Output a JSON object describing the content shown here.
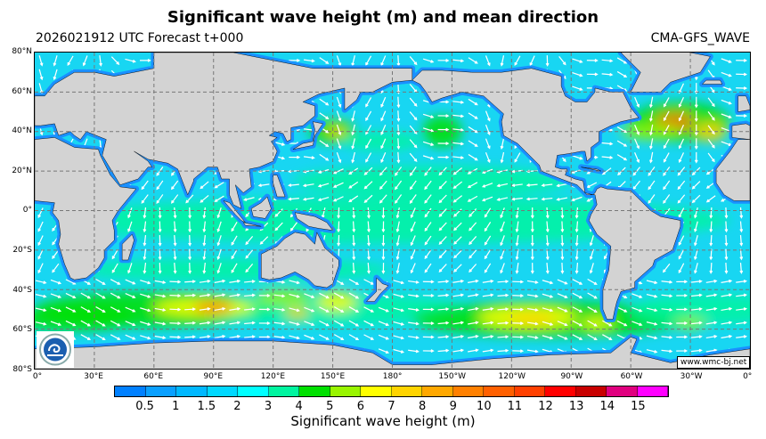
{
  "title": "Significant wave height (m) and mean direction",
  "forecast_label": "2026021912 UTC Forecast t+000",
  "model": "CMA-GFS_WAVE",
  "credit": "www.wmc-bj.net",
  "lat_labels": [
    "80°N",
    "60°N",
    "40°N",
    "20°N",
    "0°",
    "20°S",
    "40°S",
    "60°S",
    "80°S"
  ],
  "lon_labels": [
    "0°",
    "30°E",
    "60°E",
    "90°E",
    "120°E",
    "150°E",
    "180°",
    "150°W",
    "120°W",
    "90°W",
    "60°W",
    "30°W",
    "0°"
  ],
  "colorbar": {
    "label": "Significant wave height (m)",
    "ticks": [
      "0.5",
      "1",
      "1.5",
      "2",
      "3",
      "4",
      "5",
      "6",
      "7",
      "8",
      "9",
      "10",
      "11",
      "12",
      "13",
      "14",
      "15"
    ],
    "colors": [
      "#0080ff",
      "#0aa0ff",
      "#00b8ff",
      "#00d8ff",
      "#00ffff",
      "#00f5a0",
      "#00e000",
      "#99f500",
      "#ffff00",
      "#ffd400",
      "#ffa800",
      "#ff8000",
      "#ff6000",
      "#ff4000",
      "#ff0000",
      "#c80000",
      "#e0007f",
      "#ff00ff"
    ]
  },
  "colors": {
    "land": "#d3d3d3",
    "ocean": "#18d6f2",
    "coast_shallow": "#1a90ff",
    "arrow": "#ffffff"
  }
}
